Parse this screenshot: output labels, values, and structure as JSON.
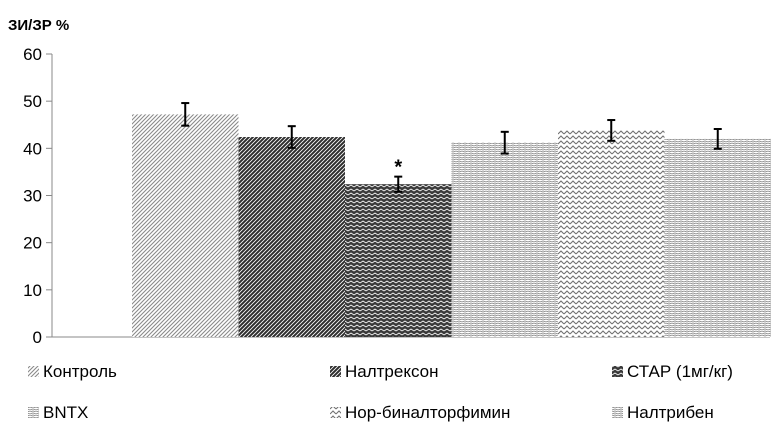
{
  "chart_data": {
    "type": "bar",
    "ylabel": "ЗИ/ЗР %",
    "ylim": [
      0,
      60
    ],
    "yticks": [
      0,
      10,
      20,
      30,
      40,
      50,
      60
    ],
    "grid": false,
    "legend_position": "bottom",
    "series": [
      {
        "name": "Контроль",
        "value": 47.2,
        "error": 2.4,
        "pattern": "diagonal-light",
        "color": "#b9b9b9"
      },
      {
        "name": "Налтрексон",
        "value": 42.4,
        "error": 2.3,
        "pattern": "diagonal-dark",
        "color": "#4a4a4a"
      },
      {
        "name": "СТАР (1мг/кг)",
        "value": 32.4,
        "error": 1.6,
        "pattern": "zigzag-dark",
        "color": "#5a5a5a",
        "annotation": "*"
      },
      {
        "name": "BNTX",
        "value": 41.2,
        "error": 2.3,
        "pattern": "wave-light",
        "color": "#bdbdbd"
      },
      {
        "name": "Нор-биналторфимин",
        "value": 43.8,
        "error": 2.2,
        "pattern": "zigzag-medium",
        "color": "#9a9a9a"
      },
      {
        "name": "Налтрибен",
        "value": 42.0,
        "error": 2.1,
        "pattern": "wave-light",
        "color": "#c6c6c6"
      }
    ]
  }
}
